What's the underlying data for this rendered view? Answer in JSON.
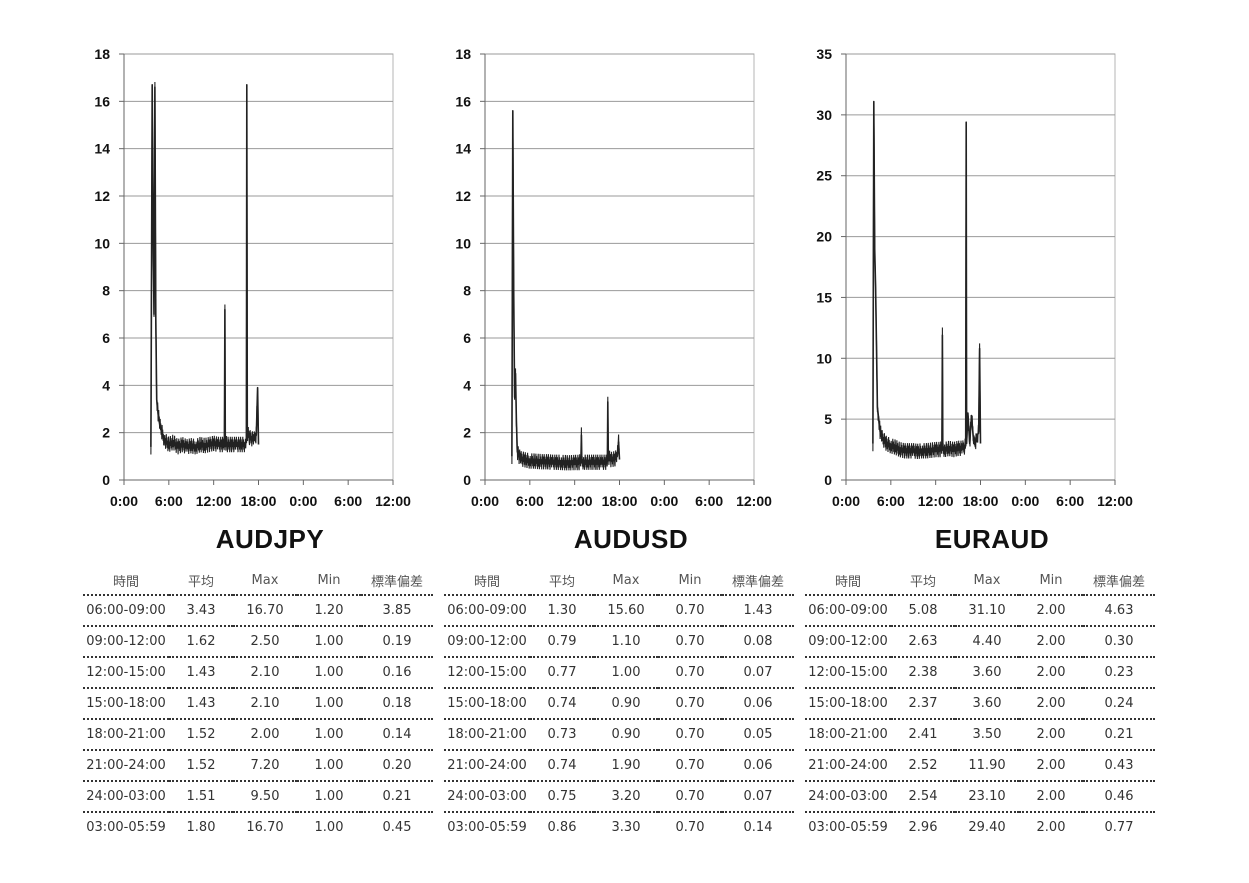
{
  "chart_data": [
    {
      "type": "line",
      "title": "AUDJPY",
      "x_ticks": [
        "0:00",
        "6:00",
        "12:00",
        "18:00",
        "0:00",
        "6:00",
        "12:00"
      ],
      "xlim_hours": [
        0,
        60
      ],
      "ylim": [
        0,
        18
      ],
      "y_ticks": [
        0,
        2,
        4,
        6,
        8,
        10,
        12,
        14,
        16,
        18
      ],
      "grid": true,
      "color": "#222222",
      "series": [
        {
          "points": [
            [
              6.0,
              1.4
            ],
            [
              6.3,
              16.7
            ],
            [
              6.5,
              10.5
            ],
            [
              6.7,
              7.0
            ],
            [
              6.9,
              16.6
            ],
            [
              7.1,
              6.8
            ],
            [
              7.3,
              3.4
            ],
            [
              7.6,
              2.8
            ],
            [
              8.0,
              2.3
            ],
            [
              8.5,
              2.0
            ],
            [
              9,
              1.7
            ],
            [
              10,
              1.5
            ],
            [
              11,
              1.6
            ],
            [
              12,
              1.4
            ],
            [
              13,
              1.5
            ],
            [
              14,
              1.4
            ],
            [
              15,
              1.45
            ],
            [
              16,
              1.4
            ],
            [
              17,
              1.5
            ],
            [
              18,
              1.45
            ],
            [
              19,
              1.5
            ],
            [
              20,
              1.55
            ],
            [
              21,
              1.5
            ],
            [
              22,
              1.5
            ],
            [
              22.4,
              1.6
            ],
            [
              22.5,
              7.2
            ],
            [
              22.6,
              1.6
            ],
            [
              23,
              1.5
            ],
            [
              24,
              1.5
            ],
            [
              25,
              1.5
            ],
            [
              26,
              1.5
            ],
            [
              27,
              1.5
            ],
            [
              27.3,
              1.6
            ],
            [
              27.4,
              16.7
            ],
            [
              27.5,
              2.0
            ],
            [
              28,
              1.8
            ],
            [
              29,
              1.7
            ],
            [
              29.5,
              1.9
            ],
            [
              29.8,
              3.9
            ],
            [
              30,
              1.5
            ]
          ]
        }
      ],
      "table": {
        "headers": [
          "時間",
          "平均",
          "Max",
          "Min",
          "標準偏差"
        ],
        "rows": [
          [
            "06:00-09:00",
            "3.43",
            "16.70",
            "1.20",
            "3.85"
          ],
          [
            "09:00-12:00",
            "1.62",
            "2.50",
            "1.00",
            "0.19"
          ],
          [
            "12:00-15:00",
            "1.43",
            "2.10",
            "1.00",
            "0.16"
          ],
          [
            "15:00-18:00",
            "1.43",
            "2.10",
            "1.00",
            "0.18"
          ],
          [
            "18:00-21:00",
            "1.52",
            "2.00",
            "1.00",
            "0.14"
          ],
          [
            "21:00-24:00",
            "1.52",
            "7.20",
            "1.00",
            "0.20"
          ],
          [
            "24:00-03:00",
            "1.51",
            "9.50",
            "1.00",
            "0.21"
          ],
          [
            "03:00-05:59",
            "1.80",
            "16.70",
            "1.00",
            "0.45"
          ]
        ]
      }
    },
    {
      "type": "line",
      "title": "AUDUSD",
      "x_ticks": [
        "0:00",
        "6:00",
        "12:00",
        "18:00",
        "0:00",
        "6:00",
        "12:00"
      ],
      "xlim_hours": [
        0,
        60
      ],
      "ylim": [
        0,
        18
      ],
      "y_ticks": [
        0,
        2,
        4,
        6,
        8,
        10,
        12,
        14,
        16,
        18
      ],
      "grid": true,
      "color": "#222222",
      "series": [
        {
          "points": [
            [
              6.0,
              1.0
            ],
            [
              6.2,
              15.6
            ],
            [
              6.4,
              8.0
            ],
            [
              6.6,
              3.5
            ],
            [
              6.8,
              4.5
            ],
            [
              7.0,
              2.5
            ],
            [
              7.2,
              1.2
            ],
            [
              7.6,
              1.0
            ],
            [
              8,
              0.9
            ],
            [
              9,
              0.85
            ],
            [
              10,
              0.8
            ],
            [
              11,
              0.8
            ],
            [
              12,
              0.78
            ],
            [
              13,
              0.77
            ],
            [
              14,
              0.77
            ],
            [
              15,
              0.75
            ],
            [
              16,
              0.75
            ],
            [
              17,
              0.74
            ],
            [
              18,
              0.73
            ],
            [
              19,
              0.73
            ],
            [
              20,
              0.74
            ],
            [
              21,
              0.74
            ],
            [
              21.4,
              0.8
            ],
            [
              21.5,
              1.9
            ],
            [
              21.6,
              0.8
            ],
            [
              22,
              0.75
            ],
            [
              23,
              0.75
            ],
            [
              24,
              0.75
            ],
            [
              25,
              0.75
            ],
            [
              26,
              0.75
            ],
            [
              27,
              0.75
            ],
            [
              27.3,
              0.8
            ],
            [
              27.4,
              3.3
            ],
            [
              27.5,
              1.0
            ],
            [
              28,
              0.86
            ],
            [
              29,
              0.9
            ],
            [
              29.5,
              1.0
            ],
            [
              29.8,
              1.6
            ],
            [
              30,
              0.86
            ]
          ]
        }
      ],
      "table": {
        "headers": [
          "時間",
          "平均",
          "Max",
          "Min",
          "標準偏差"
        ],
        "rows": [
          [
            "06:00-09:00",
            "1.30",
            "15.60",
            "0.70",
            "1.43"
          ],
          [
            "09:00-12:00",
            "0.79",
            "1.10",
            "0.70",
            "0.08"
          ],
          [
            "12:00-15:00",
            "0.77",
            "1.00",
            "0.70",
            "0.07"
          ],
          [
            "15:00-18:00",
            "0.74",
            "0.90",
            "0.70",
            "0.06"
          ],
          [
            "18:00-21:00",
            "0.73",
            "0.90",
            "0.70",
            "0.05"
          ],
          [
            "21:00-24:00",
            "0.74",
            "1.90",
            "0.70",
            "0.06"
          ],
          [
            "24:00-03:00",
            "0.75",
            "3.20",
            "0.70",
            "0.07"
          ],
          [
            "03:00-05:59",
            "0.86",
            "3.30",
            "0.70",
            "0.14"
          ]
        ]
      }
    },
    {
      "type": "line",
      "title": "EURAUD",
      "x_ticks": [
        "0:00",
        "6:00",
        "12:00",
        "18:00",
        "0:00",
        "6:00",
        "12:00"
      ],
      "xlim_hours": [
        0,
        60
      ],
      "ylim": [
        0,
        35
      ],
      "y_ticks": [
        0,
        5,
        10,
        15,
        20,
        25,
        30,
        35
      ],
      "grid": true,
      "color": "#222222",
      "series": [
        {
          "points": [
            [
              6.0,
              3.0
            ],
            [
              6.2,
              31.1
            ],
            [
              6.4,
              19.0
            ],
            [
              6.6,
              15.8
            ],
            [
              6.8,
              11.0
            ],
            [
              7.0,
              6.0
            ],
            [
              7.3,
              5.0
            ],
            [
              7.6,
              4.0
            ],
            [
              8,
              3.5
            ],
            [
              9,
              3.0
            ],
            [
              10,
              2.8
            ],
            [
              11,
              2.7
            ],
            [
              12,
              2.5
            ],
            [
              13,
              2.4
            ],
            [
              14,
              2.4
            ],
            [
              15,
              2.4
            ],
            [
              16,
              2.35
            ],
            [
              17,
              2.4
            ],
            [
              18,
              2.4
            ],
            [
              19,
              2.45
            ],
            [
              20,
              2.5
            ],
            [
              21,
              2.5
            ],
            [
              21.4,
              2.6
            ],
            [
              21.5,
              11.9
            ],
            [
              21.6,
              2.6
            ],
            [
              22,
              2.5
            ],
            [
              23,
              2.6
            ],
            [
              24,
              2.5
            ],
            [
              25,
              2.6
            ],
            [
              26,
              2.6
            ],
            [
              26.7,
              2.8
            ],
            [
              26.8,
              29.4
            ],
            [
              26.9,
              3.0
            ],
            [
              27.2,
              5.5
            ],
            [
              27.6,
              3.0
            ],
            [
              28,
              5.3
            ],
            [
              28.5,
              3.0
            ],
            [
              29,
              3.2
            ],
            [
              29.6,
              4.0
            ],
            [
              29.8,
              10.8
            ],
            [
              30,
              3.0
            ]
          ]
        }
      ],
      "table": {
        "headers": [
          "時間",
          "平均",
          "Max",
          "Min",
          "標準偏差"
        ],
        "rows": [
          [
            "06:00-09:00",
            "5.08",
            "31.10",
            "2.00",
            "4.63"
          ],
          [
            "09:00-12:00",
            "2.63",
            "4.40",
            "2.00",
            "0.30"
          ],
          [
            "12:00-15:00",
            "2.38",
            "3.60",
            "2.00",
            "0.23"
          ],
          [
            "15:00-18:00",
            "2.37",
            "3.60",
            "2.00",
            "0.24"
          ],
          [
            "18:00-21:00",
            "2.41",
            "3.50",
            "2.00",
            "0.21"
          ],
          [
            "21:00-24:00",
            "2.52",
            "11.90",
            "2.00",
            "0.43"
          ],
          [
            "24:00-03:00",
            "2.54",
            "23.10",
            "2.00",
            "0.46"
          ],
          [
            "03:00-05:59",
            "2.96",
            "29.40",
            "2.00",
            "0.77"
          ]
        ]
      }
    }
  ]
}
